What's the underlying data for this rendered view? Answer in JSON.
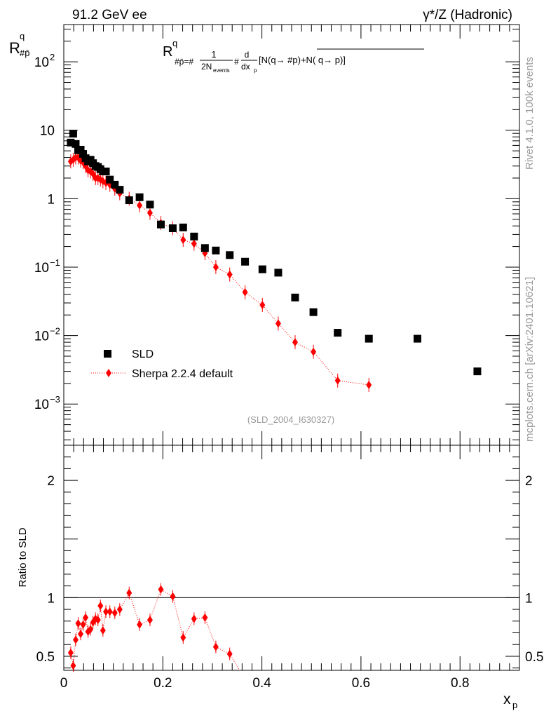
{
  "header": {
    "left": "91.2 GeV ee",
    "right": "γ*/Z (Hadronic)"
  },
  "side_labels": {
    "rivet": "Rivet 4.1.0,  100k events",
    "mcplots": "mcplots.cern.ch [arXiv:2401.10621]"
  },
  "chart_data": [
    {
      "type": "scatter",
      "panel": "main",
      "yscale": "log",
      "title_formula": {
        "prefix": "R",
        "sup": "q",
        "sub": "#p̄=#",
        "frac1_num": "1",
        "frac1_den": "2N",
        "frac1_den_sub": "events",
        "mid": "#",
        "frac2_num": "d",
        "frac2_den": "dx",
        "frac2_den_sub": "p",
        "tail": "[N(q→  #p)+N( q→  p)]"
      },
      "ylabel": {
        "base": "R",
        "sup": "q",
        "sub": "#p̄"
      },
      "xlim": [
        0,
        0.92
      ],
      "ylim": [
        0.00025,
        350
      ],
      "x_ticks": [
        0,
        0.2,
        0.4,
        0.6,
        0.8
      ],
      "y_tick_labels": [
        {
          "value": 100,
          "base": "10",
          "exp": "2"
        },
        {
          "value": 10,
          "base": "10",
          "exp": ""
        },
        {
          "value": 1,
          "base": "1",
          "exp": ""
        },
        {
          "value": 0.1,
          "base": "10",
          "exp": "−1"
        },
        {
          "value": 0.01,
          "base": "10",
          "exp": "−2"
        },
        {
          "value": 0.001,
          "base": "10",
          "exp": "−3"
        }
      ],
      "legend": [
        {
          "name": "SLD",
          "marker": "square",
          "color": "#000000"
        },
        {
          "name": "Sherpa 2.2.4 default",
          "marker": "diamond",
          "color": "#ff0000"
        }
      ],
      "watermark": "(SLD_2004_I630327)",
      "series": [
        {
          "name": "SLD",
          "color": "#000000",
          "x": [
            0.014,
            0.019,
            0.024,
            0.029,
            0.034,
            0.039,
            0.044,
            0.049,
            0.054,
            0.059,
            0.064,
            0.069,
            0.074,
            0.079,
            0.085,
            0.093,
            0.103,
            0.113,
            0.132,
            0.153,
            0.174,
            0.196,
            0.22,
            0.241,
            0.263,
            0.285,
            0.307,
            0.335,
            0.366,
            0.401,
            0.433,
            0.467,
            0.504,
            0.553,
            0.616,
            0.714,
            0.835
          ],
          "y": [
            6.6,
            8.9,
            6.3,
            5.1,
            5.2,
            4.5,
            3.9,
            3.5,
            3.7,
            3.3,
            3.0,
            2.9,
            2.7,
            2.5,
            2.5,
            1.9,
            1.6,
            1.35,
            0.95,
            1.05,
            0.82,
            0.42,
            0.37,
            0.38,
            0.28,
            0.19,
            0.175,
            0.15,
            0.12,
            0.093,
            0.083,
            0.036,
            0.022,
            0.011,
            0.009,
            0.009,
            0.003
          ]
        },
        {
          "name": "Sherpa 2.2.4 default",
          "color": "#ff0000",
          "x": [
            0.014,
            0.019,
            0.024,
            0.029,
            0.034,
            0.039,
            0.044,
            0.049,
            0.054,
            0.059,
            0.064,
            0.069,
            0.074,
            0.079,
            0.085,
            0.093,
            0.103,
            0.113,
            0.132,
            0.153,
            0.174,
            0.196,
            0.22,
            0.241,
            0.263,
            0.285,
            0.307,
            0.335,
            0.366,
            0.401,
            0.433,
            0.467,
            0.504,
            0.553,
            0.616
          ],
          "y": [
            3.5,
            3.7,
            4.0,
            4.0,
            3.6,
            3.4,
            3.0,
            2.6,
            2.5,
            2.3,
            2.0,
            2.0,
            1.9,
            1.8,
            1.7,
            1.6,
            1.4,
            1.2,
            1.0,
            0.8,
            0.62,
            0.44,
            0.37,
            0.25,
            0.22,
            0.16,
            0.1,
            0.078,
            0.043,
            0.028,
            0.015,
            0.008,
            0.0058,
            0.0022,
            0.0019
          ]
        }
      ]
    },
    {
      "type": "line",
      "panel": "ratio",
      "ylabel": "Ratio to SLD",
      "xlabel": {
        "base": "x",
        "sub": "p"
      },
      "xlim": [
        0,
        0.92
      ],
      "ylim": [
        0.38,
        2.3
      ],
      "x_ticks": [
        0,
        0.2,
        0.4,
        0.6,
        0.8
      ],
      "x_tick_labels": [
        "0",
        "0.2",
        "0.4",
        "0.6",
        "0.8"
      ],
      "y_ticks": [
        0.5,
        1,
        2
      ],
      "y_tick_labels": [
        "0.5",
        "1",
        "2"
      ],
      "reference_line": 1,
      "series": [
        {
          "name": "Sherpa 2.2.4 default",
          "color": "#ff0000",
          "x": [
            0.014,
            0.019,
            0.024,
            0.029,
            0.034,
            0.039,
            0.044,
            0.049,
            0.054,
            0.059,
            0.064,
            0.069,
            0.074,
            0.079,
            0.085,
            0.093,
            0.103,
            0.113,
            0.132,
            0.153,
            0.174,
            0.196,
            0.22,
            0.241,
            0.263,
            0.285,
            0.307,
            0.335,
            0.355
          ],
          "y": [
            0.53,
            0.42,
            0.64,
            0.78,
            0.69,
            0.77,
            0.83,
            0.71,
            0.73,
            0.79,
            0.82,
            0.81,
            0.93,
            0.72,
            0.88,
            0.88,
            0.87,
            0.9,
            1.04,
            0.77,
            0.81,
            1.07,
            1.01,
            0.66,
            0.82,
            0.83,
            0.58,
            0.52,
            0.38
          ]
        }
      ]
    }
  ]
}
